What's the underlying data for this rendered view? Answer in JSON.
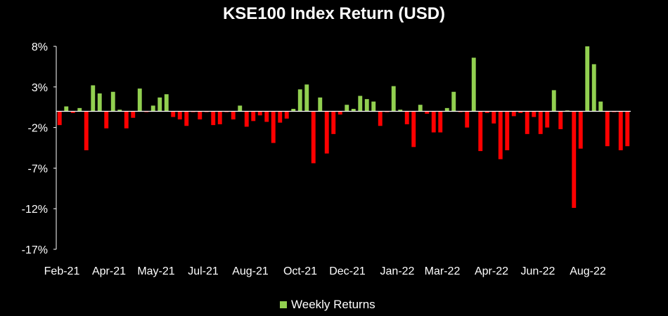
{
  "chart_data": {
    "type": "bar",
    "title": "KSE100 Index Return (USD)",
    "xlabel": "",
    "ylabel": "",
    "ylim": [
      -17,
      8
    ],
    "yticks": [
      "8%",
      "3%",
      "-2%",
      "-7%",
      "-12%",
      "-17%"
    ],
    "ytick_values": [
      8,
      3,
      -2,
      -7,
      -12,
      -17
    ],
    "xtick_labels": [
      "Feb-21",
      "Apr-21",
      "May-21",
      "Jul-21",
      "Aug-21",
      "Oct-21",
      "Dec-21",
      "Jan-22",
      "Mar-22",
      "Apr-22",
      "Jun-22",
      "Aug-22"
    ],
    "legend": "bottom-center",
    "series": [
      {
        "name": "Weekly Returns",
        "values": [
          -1.7,
          0.6,
          -0.2,
          0.4,
          -4.8,
          3.2,
          2.2,
          -2.1,
          2.4,
          0.2,
          -2.1,
          -0.8,
          2.8,
          -0.1,
          0.7,
          1.7,
          2.1,
          -0.7,
          -1.0,
          -1.8,
          -0.1,
          -1.0,
          -0.1,
          -1.7,
          -1.6,
          -0.1,
          -1.0,
          0.7,
          -1.9,
          -1.2,
          -0.5,
          -1.3,
          -3.9,
          -1.4,
          -0.9,
          0.3,
          2.7,
          3.3,
          -6.4,
          1.7,
          -5.2,
          -2.8,
          -0.4,
          0.8,
          0.3,
          1.9,
          1.5,
          1.2,
          -1.8,
          -0.1,
          3.1,
          0.2,
          -1.6,
          -4.4,
          0.8,
          -0.3,
          -2.6,
          -2.6,
          0.4,
          2.4,
          -0.1,
          -2.0,
          6.6,
          -4.9,
          -0.2,
          -1.5,
          -5.9,
          -4.8,
          -0.6,
          -0.2,
          -2.8,
          -0.7,
          -2.8,
          -2.0,
          2.6,
          -2.2,
          0.1,
          -11.9,
          -4.6,
          8.0,
          5.8,
          1.2,
          -4.3,
          -0.1,
          -4.8,
          -4.3
        ],
        "positive_color": "#92D050",
        "negative_color": "#FF0000"
      }
    ]
  },
  "colors": {
    "background": "#000000",
    "axis": "#ffffff",
    "text": "#ffffff"
  }
}
